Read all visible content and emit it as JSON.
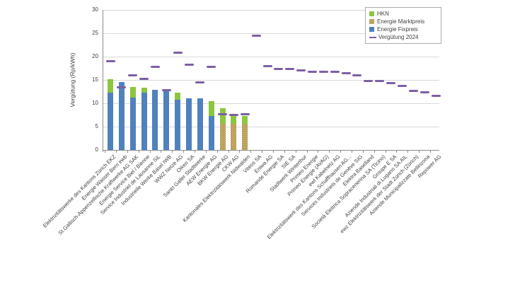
{
  "chart_data": {
    "type": "bar",
    "stacked": true,
    "title": "",
    "xlabel": "",
    "ylabel": "Vergütung (Rp/kWh)",
    "ylim": [
      0,
      30
    ],
    "ytick_step": 5,
    "grid": "horizontal",
    "legend_position": "top-right",
    "legend": [
      "HKN",
      "Energie Marktpreis",
      "Energie Fixpreis",
      "Vergütung 2024"
    ],
    "categories": [
      "Elektrizitätswerke des Kantons Zürich EKZ",
      "Energie Wasser Bern ewb",
      "St.Gallisch-Appenzellische Kraftwerke AG SAK",
      "Energie Service Biel / Bienne",
      "Service Industriel de Lausanne SiL",
      "Industrielle Werke Basel IWB",
      "WWZ Netze AG",
      "Oiken SA",
      "Sankt Galler Stadtwerke",
      "AEW Energie AG",
      "BKW Energie AG",
      "CKW AG",
      "Kantonales Elektrizitätswerk Nidwalden",
      "Viteos SA",
      "Eniwa AG",
      "Romande Energie SA",
      "SIE SA",
      "Stadtwerk Winterthur",
      "Primeo Energie",
      "Primeo Energie (AVAG)",
      "ewl Kabelnetz AG",
      "Elektrizitätswerk des Kantons Schaffhausen AG...",
      "Services Industriels de Genève SIG",
      "Elektra Baselland",
      "Società Elettrica Sopracenerina SA (Ticino)",
      "Groupe E SA",
      "Aziende Industriali di Lugano SA AIL",
      "ewz Elektrizitätswerk der Stadt Zürich (Zürich)",
      "Aziende Municipalizzate Bellinzona",
      "Repower AG"
    ],
    "series": [
      {
        "name": "Energie Fixpreis",
        "type": "bar",
        "color_key": "fixpreis",
        "values": [
          12.2,
          14.5,
          11.2,
          12.3,
          12.9,
          12.8,
          10.7,
          11.0,
          11.0,
          7.2,
          0,
          0,
          0,
          0,
          0,
          0,
          0,
          0,
          0,
          0,
          0,
          0,
          0,
          0,
          0,
          0,
          0,
          0,
          0,
          0
        ]
      },
      {
        "name": "Energie Marktpreis",
        "type": "bar",
        "color_key": "marktpreis",
        "values": [
          0,
          0,
          0,
          0,
          0,
          0,
          0,
          0,
          0,
          0,
          5.6,
          5.6,
          5.6,
          0,
          0,
          0,
          0,
          0,
          0,
          0,
          0,
          0,
          0,
          0,
          0,
          0,
          0,
          0,
          0,
          0
        ]
      },
      {
        "name": "HKN",
        "type": "bar",
        "color_key": "hkn",
        "values": [
          3.0,
          0,
          2.3,
          1.0,
          0,
          0,
          1.5,
          0,
          0,
          3.2,
          3.3,
          1.7,
          1.7,
          0,
          0,
          0,
          0,
          0,
          0,
          0,
          0,
          0,
          0,
          0,
          0,
          0,
          0,
          0,
          0,
          0
        ]
      },
      {
        "name": "Vergütung 2024",
        "type": "dash-marker",
        "color_key": "verguetung2024",
        "values": [
          19.0,
          13.4,
          16.0,
          15.3,
          17.8,
          12.8,
          20.9,
          18.2,
          14.4,
          17.8,
          7.7,
          7.5,
          7.6,
          24.5,
          18.0,
          17.3,
          17.3,
          17.1,
          16.8,
          16.8,
          16.8,
          16.4,
          16.0,
          14.7,
          14.8,
          14.3,
          13.7,
          12.6,
          12.3,
          11.6
        ]
      }
    ],
    "colors": {
      "hkn": "#8CC63F",
      "marktpreis_base": "#CDB26B",
      "marktpreis_dot": "#8A7038",
      "fixpreis": "#4F81BD",
      "verguetung2024": "#7D5FA5",
      "gridline": "#D9D9D9",
      "axis": "#8C8C8C",
      "text": "#3F3F3F"
    }
  }
}
